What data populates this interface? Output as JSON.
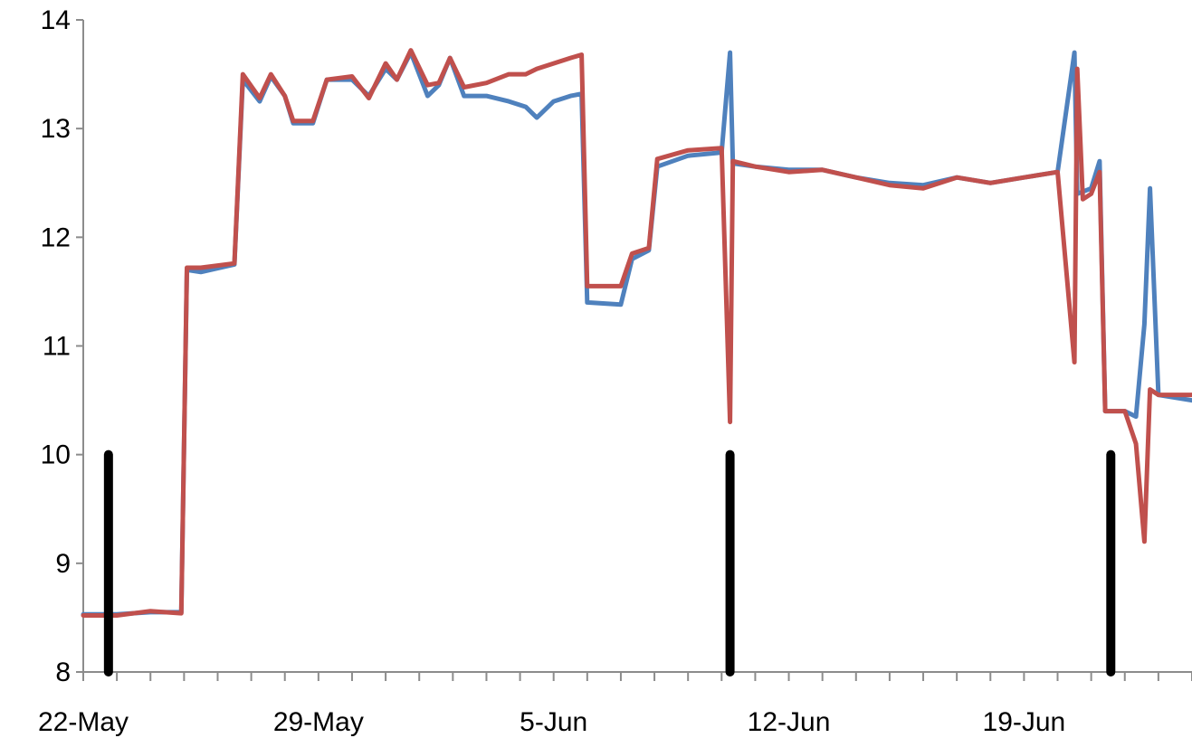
{
  "chart_data": {
    "type": "line",
    "title": "",
    "xlabel": "",
    "ylabel": "",
    "x_ticks": [
      "22-May",
      "29-May",
      "5-Jun",
      "12-Jun",
      "19-Jun"
    ],
    "y_ticks": [
      "8",
      "9",
      "10",
      "11",
      "12",
      "13",
      "14"
    ],
    "ylim": [
      8,
      14
    ],
    "xlim": [
      "2015-05-22",
      "2015-06-24"
    ],
    "grid": false,
    "legend": "none",
    "series": [
      {
        "color": "#4f81bd",
        "points": [
          [
            "2015-05-22T00:00",
            8.53
          ],
          [
            "2015-05-23T00:00",
            8.53
          ],
          [
            "2015-05-24T00:00",
            8.55
          ],
          [
            "2015-05-24T22:00",
            8.55
          ],
          [
            "2015-05-25T02:00",
            11.7
          ],
          [
            "2015-05-25T12:00",
            11.68
          ],
          [
            "2015-05-26T12:00",
            11.75
          ],
          [
            "2015-05-26T18:00",
            13.45
          ],
          [
            "2015-05-27T06:00",
            13.25
          ],
          [
            "2015-05-27T14:00",
            13.48
          ],
          [
            "2015-05-28T00:00",
            13.3
          ],
          [
            "2015-05-28T06:00",
            13.05
          ],
          [
            "2015-05-28T20:00",
            13.05
          ],
          [
            "2015-05-29T06:00",
            13.45
          ],
          [
            "2015-05-30T00:00",
            13.45
          ],
          [
            "2015-05-30T12:00",
            13.3
          ],
          [
            "2015-05-31T00:00",
            13.55
          ],
          [
            "2015-05-31T08:00",
            13.45
          ],
          [
            "2015-05-31T18:00",
            13.7
          ],
          [
            "2015-06-01T06:00",
            13.3
          ],
          [
            "2015-06-01T14:00",
            13.4
          ],
          [
            "2015-06-01T22:00",
            13.65
          ],
          [
            "2015-06-02T08:00",
            13.3
          ],
          [
            "2015-06-03T00:00",
            13.3
          ],
          [
            "2015-06-03T16:00",
            13.25
          ],
          [
            "2015-06-04T04:00",
            13.2
          ],
          [
            "2015-06-04T12:00",
            13.1
          ],
          [
            "2015-06-05T00:00",
            13.25
          ],
          [
            "2015-06-05T12:00",
            13.3
          ],
          [
            "2015-06-05T20:00",
            13.32
          ],
          [
            "2015-06-06T00:00",
            11.4
          ],
          [
            "2015-06-07T00:00",
            11.38
          ],
          [
            "2015-06-07T08:00",
            11.8
          ],
          [
            "2015-06-07T20:00",
            11.88
          ],
          [
            "2015-06-08T02:00",
            12.65
          ],
          [
            "2015-06-09T00:00",
            12.75
          ],
          [
            "2015-06-10T00:00",
            12.78
          ],
          [
            "2015-06-10T06:00",
            13.7
          ],
          [
            "2015-06-10T08:00",
            12.68
          ],
          [
            "2015-06-11T00:00",
            12.65
          ],
          [
            "2015-06-12T00:00",
            12.62
          ],
          [
            "2015-06-13T00:00",
            12.62
          ],
          [
            "2015-06-14T00:00",
            12.55
          ],
          [
            "2015-06-15T00:00",
            12.5
          ],
          [
            "2015-06-16T00:00",
            12.48
          ],
          [
            "2015-06-17T00:00",
            12.55
          ],
          [
            "2015-06-18T00:00",
            12.5
          ],
          [
            "2015-06-19T00:00",
            12.55
          ],
          [
            "2015-06-20T00:00",
            12.6
          ],
          [
            "2015-06-20T12:00",
            13.7
          ],
          [
            "2015-06-20T14:00",
            12.4
          ],
          [
            "2015-06-21T00:00",
            12.45
          ],
          [
            "2015-06-21T06:00",
            12.7
          ],
          [
            "2015-06-21T10:00",
            10.4
          ],
          [
            "2015-06-22T00:00",
            10.4
          ],
          [
            "2015-06-22T08:00",
            10.35
          ],
          [
            "2015-06-22T14:00",
            11.2
          ],
          [
            "2015-06-22T18:00",
            12.45
          ],
          [
            "2015-06-23T00:00",
            10.55
          ],
          [
            "2015-06-24T00:00",
            10.5
          ]
        ]
      },
      {
        "color": "#c0504d",
        "points": [
          [
            "2015-05-22T00:00",
            8.52
          ],
          [
            "2015-05-23T00:00",
            8.52
          ],
          [
            "2015-05-24T00:00",
            8.56
          ],
          [
            "2015-05-24T22:00",
            8.54
          ],
          [
            "2015-05-25T02:00",
            11.72
          ],
          [
            "2015-05-25T12:00",
            11.72
          ],
          [
            "2015-05-26T12:00",
            11.76
          ],
          [
            "2015-05-26T18:00",
            13.5
          ],
          [
            "2015-05-27T06:00",
            13.28
          ],
          [
            "2015-05-27T14:00",
            13.5
          ],
          [
            "2015-05-28T00:00",
            13.3
          ],
          [
            "2015-05-28T06:00",
            13.07
          ],
          [
            "2015-05-28T20:00",
            13.07
          ],
          [
            "2015-05-29T06:00",
            13.45
          ],
          [
            "2015-05-30T00:00",
            13.48
          ],
          [
            "2015-05-30T12:00",
            13.28
          ],
          [
            "2015-05-31T00:00",
            13.6
          ],
          [
            "2015-05-31T08:00",
            13.45
          ],
          [
            "2015-05-31T18:00",
            13.72
          ],
          [
            "2015-06-01T06:00",
            13.4
          ],
          [
            "2015-06-01T14:00",
            13.42
          ],
          [
            "2015-06-01T22:00",
            13.65
          ],
          [
            "2015-06-02T08:00",
            13.38
          ],
          [
            "2015-06-03T00:00",
            13.42
          ],
          [
            "2015-06-03T16:00",
            13.5
          ],
          [
            "2015-06-04T04:00",
            13.5
          ],
          [
            "2015-06-04T12:00",
            13.55
          ],
          [
            "2015-06-05T00:00",
            13.6
          ],
          [
            "2015-06-05T12:00",
            13.65
          ],
          [
            "2015-06-05T20:00",
            13.68
          ],
          [
            "2015-06-06T00:00",
            11.55
          ],
          [
            "2015-06-07T00:00",
            11.55
          ],
          [
            "2015-06-07T08:00",
            11.85
          ],
          [
            "2015-06-07T20:00",
            11.9
          ],
          [
            "2015-06-08T02:00",
            12.72
          ],
          [
            "2015-06-09T00:00",
            12.8
          ],
          [
            "2015-06-10T00:00",
            12.82
          ],
          [
            "2015-06-10T06:00",
            10.3
          ],
          [
            "2015-06-10T08:00",
            12.7
          ],
          [
            "2015-06-11T00:00",
            12.65
          ],
          [
            "2015-06-12T00:00",
            12.6
          ],
          [
            "2015-06-13T00:00",
            12.62
          ],
          [
            "2015-06-14T00:00",
            12.55
          ],
          [
            "2015-06-15T00:00",
            12.48
          ],
          [
            "2015-06-16T00:00",
            12.45
          ],
          [
            "2015-06-17T00:00",
            12.55
          ],
          [
            "2015-06-18T00:00",
            12.5
          ],
          [
            "2015-06-19T00:00",
            12.55
          ],
          [
            "2015-06-20T00:00",
            12.6
          ],
          [
            "2015-06-20T12:00",
            10.85
          ],
          [
            "2015-06-20T14:00",
            13.55
          ],
          [
            "2015-06-20T18:00",
            12.35
          ],
          [
            "2015-06-21T00:00",
            12.4
          ],
          [
            "2015-06-21T06:00",
            12.6
          ],
          [
            "2015-06-21T10:00",
            10.4
          ],
          [
            "2015-06-22T00:00",
            10.4
          ],
          [
            "2015-06-22T08:00",
            10.1
          ],
          [
            "2015-06-22T14:00",
            9.2
          ],
          [
            "2015-06-22T18:00",
            10.6
          ],
          [
            "2015-06-23T00:00",
            10.55
          ],
          [
            "2015-06-24T00:00",
            10.55
          ]
        ]
      }
    ],
    "markers": {
      "color": "#000000",
      "items": [
        {
          "x": "2015-05-22T18:00",
          "y0": 8,
          "y1": 10
        },
        {
          "x": "2015-06-10T06:00",
          "y0": 8,
          "y1": 10
        },
        {
          "x": "2015-06-21T14:00",
          "y0": 8,
          "y1": 10
        }
      ]
    }
  }
}
